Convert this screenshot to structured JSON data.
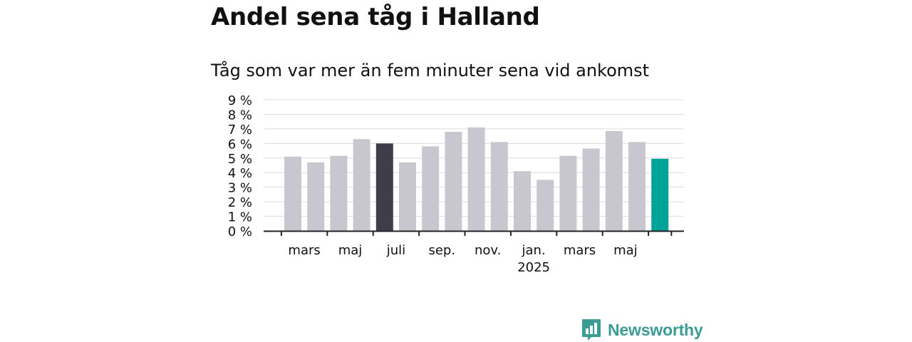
{
  "header": {
    "title": "Andel sena tåg i Halland",
    "subtitle": "Tåg som var mer än fem minuter sena vid ankomst"
  },
  "brand": {
    "name": "Newsworthy",
    "icon": "newsworthy-logo-icon",
    "color": "#3b9c94"
  },
  "colors": {
    "bar_default": "#c8c7cf",
    "bar_highlight_previous": "#3f3d4a",
    "bar_highlight_latest": "#00a397",
    "gridline": "#dcdcdc",
    "axis": "#222222"
  },
  "chart_data": {
    "type": "bar",
    "title": "Andel sena tåg i Halland",
    "subtitle": "Tåg som var mer än fem minuter sena vid ankomst",
    "xlabel": "",
    "ylabel": "",
    "ylim": [
      0,
      9
    ],
    "grid": true,
    "y_ticks": [
      "0 %",
      "1 %",
      "2 %",
      "3 %",
      "4 %",
      "5 %",
      "6 %",
      "7 %",
      "8 %",
      "9 %"
    ],
    "x_tick_labels": [
      {
        "label": "mars",
        "month": "2024-03"
      },
      {
        "label": "maj",
        "month": "2024-05"
      },
      {
        "label": "juli",
        "month": "2024-07"
      },
      {
        "label": "sep.",
        "month": "2024-09"
      },
      {
        "label": "nov.",
        "month": "2024-11"
      },
      {
        "label": "jan.",
        "sub": "2025",
        "month": "2025-01"
      },
      {
        "label": "mars",
        "month": "2025-03"
      },
      {
        "label": "maj",
        "month": "2025-05"
      }
    ],
    "categories": [
      "2024-02",
      "2024-03",
      "2024-04",
      "2024-05",
      "2024-06",
      "2024-07",
      "2024-08",
      "2024-09",
      "2024-10",
      "2024-11",
      "2024-12",
      "2025-01",
      "2025-02",
      "2025-03",
      "2025-04",
      "2025-05",
      "2025-06"
    ],
    "values": [
      5.1,
      4.7,
      5.15,
      6.3,
      6.0,
      4.7,
      5.8,
      6.8,
      7.1,
      6.1,
      4.1,
      3.5,
      5.15,
      5.65,
      6.85,
      6.1,
      4.95
    ],
    "highlights": {
      "2024-06": "bar_highlight_previous",
      "2025-06": "bar_highlight_latest"
    }
  }
}
